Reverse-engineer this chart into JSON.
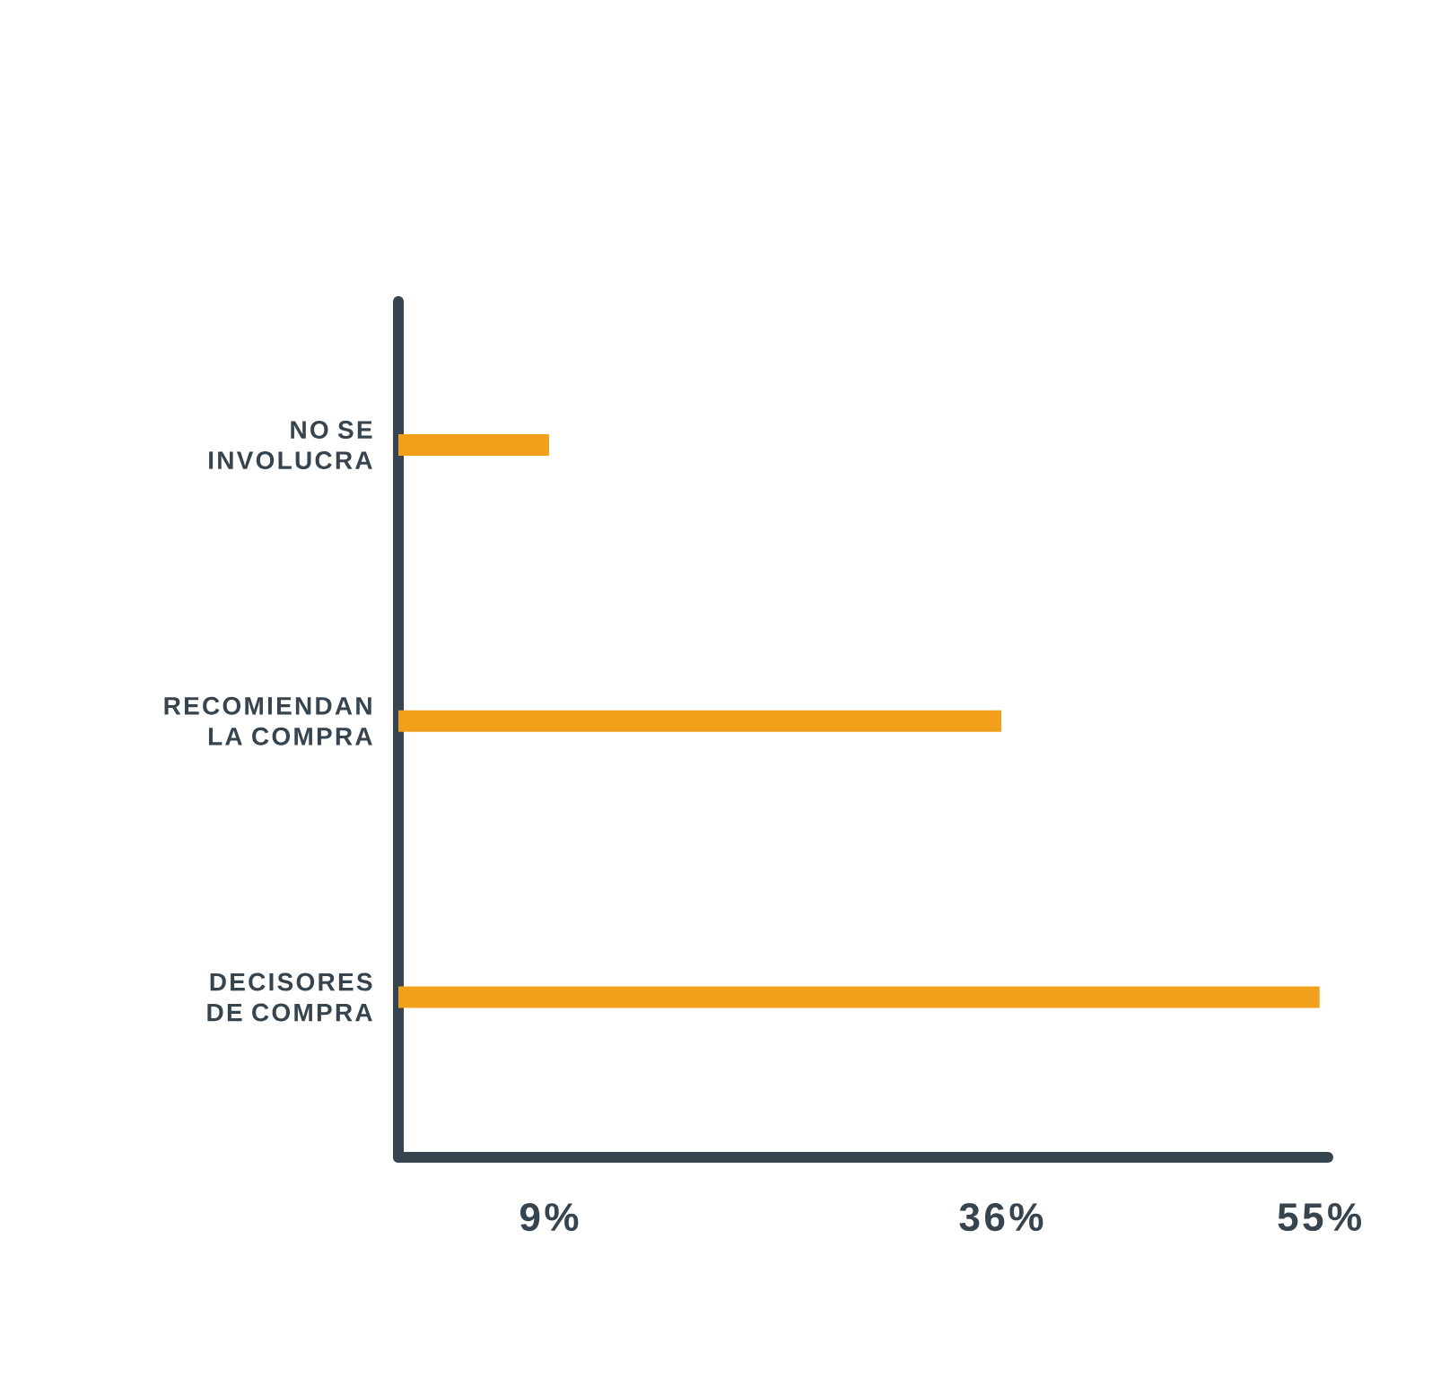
{
  "chart_data": {
    "type": "bar",
    "orientation": "horizontal",
    "categories": [
      "NO SE INVOLUCRA",
      "RECOMIENDAN LA COMPRA",
      "DECISORES DE COMPRA"
    ],
    "values": [
      9,
      36,
      55
    ],
    "color": "#f2a01c",
    "xlim": [
      0,
      55.5
    ],
    "xticks": [
      {
        "value": 9,
        "label": "9%"
      },
      {
        "value": 36,
        "label": "36%"
      },
      {
        "value": 55,
        "label": "55%"
      }
    ]
  }
}
